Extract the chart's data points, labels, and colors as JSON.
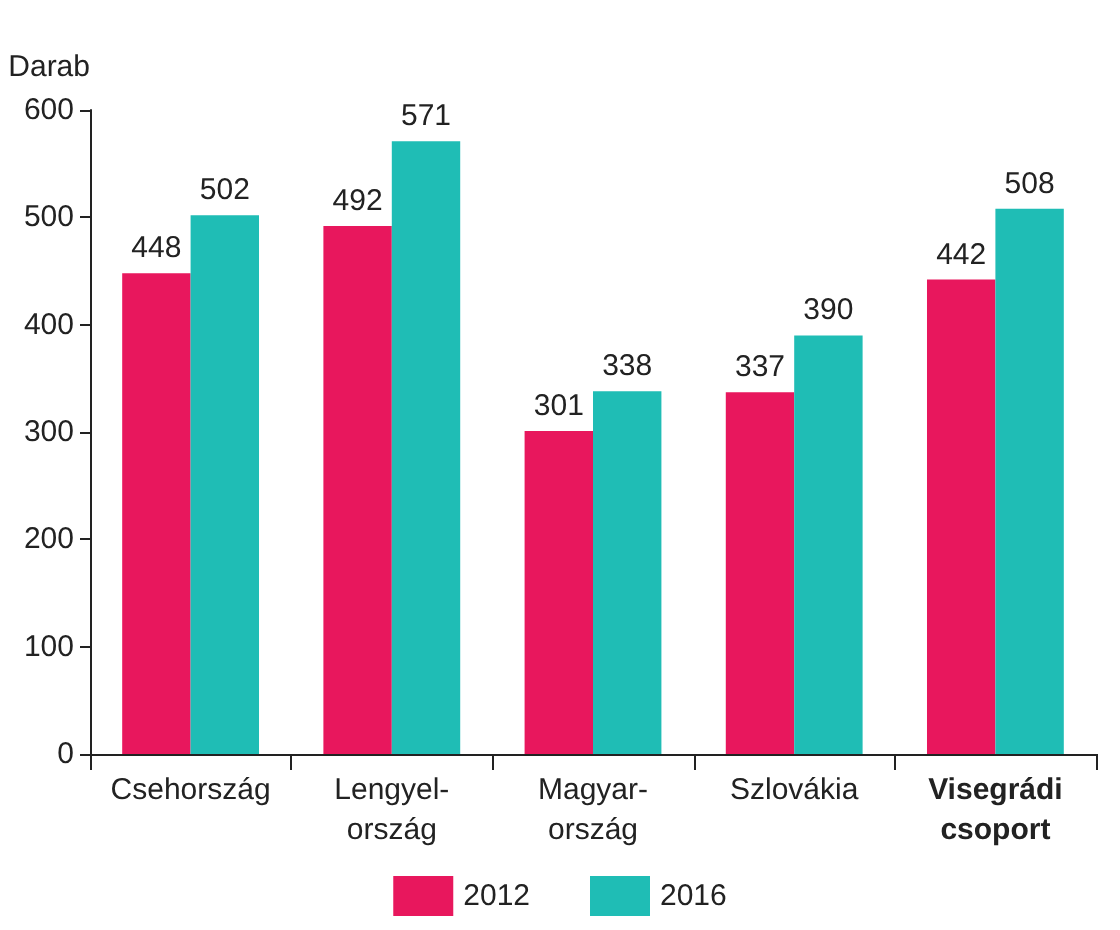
{
  "chart_data": {
    "type": "bar",
    "ylabel": "Darab",
    "categories": [
      "Csehország",
      "Lengyel-\nország",
      "Magyar-\nország",
      "Szlovákia",
      "Visegrádi\ncsoport"
    ],
    "series": [
      {
        "name": "2012",
        "color": "#e8175d",
        "values": [
          448,
          492,
          301,
          337,
          442
        ]
      },
      {
        "name": "2016",
        "color": "#1fbdb5",
        "values": [
          502,
          571,
          338,
          390,
          508
        ]
      }
    ],
    "ylim": [
      0,
      600
    ],
    "yticks": [
      0,
      100,
      200,
      300,
      400,
      500,
      600
    ],
    "grid": false,
    "legend": "bottom",
    "data_labels": true
  }
}
